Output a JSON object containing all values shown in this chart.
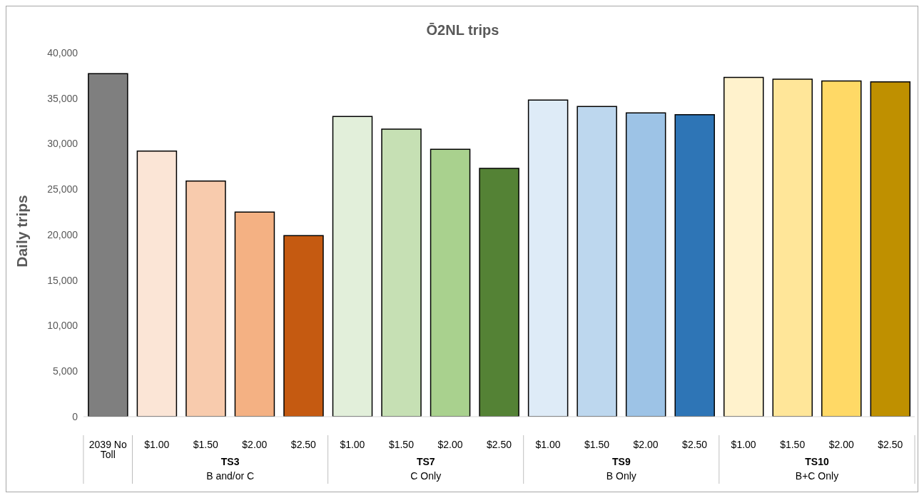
{
  "chart_data": {
    "type": "bar",
    "title": "Ō2NL trips",
    "ylabel": "Daily trips",
    "categories": [
      "2039 No Toll",
      "$1.00",
      "$1.50",
      "$2.00",
      "$2.50",
      "$1.00",
      "$1.50",
      "$2.00",
      "$2.50",
      "$1.00",
      "$1.50",
      "$2.00",
      "$2.50",
      "$1.00",
      "$1.50",
      "$2.00",
      "$2.50"
    ],
    "values": [
      37700,
      29200,
      25900,
      22500,
      19900,
      33000,
      31600,
      29400,
      27300,
      34800,
      34100,
      33400,
      33200,
      37300,
      37100,
      36900,
      36800
    ],
    "colors": [
      "#7f7f7f",
      "#fbe5d6",
      "#f8cbad",
      "#f4b183",
      "#c55a11",
      "#e2efda",
      "#c6e0b4",
      "#a9d18e",
      "#548235",
      "#deebf7",
      "#bdd7ee",
      "#9dc3e6",
      "#2e75b6",
      "#fff2cc",
      "#ffe699",
      "#ffd966",
      "#bf9000"
    ],
    "annotations": [
      "TS3",
      "B and/or C",
      "TS7",
      "C Only",
      "TS9",
      "B Only",
      "TS10",
      "B+C Only"
    ],
    "ylim": [
      0,
      40000
    ],
    "yticks": [
      0,
      {
        "value": 5000,
        "label": "5,000"
      },
      {
        "value": 10000,
        "label": "10,000"
      },
      {
        "value": 15000,
        "label": "15,000"
      },
      {
        "value": 20000,
        "label": "20,000"
      },
      {
        "value": 25000,
        "label": "25,000"
      },
      {
        "value": 30000,
        "label": "30,000"
      },
      {
        "value": 35000,
        "label": "35,000"
      },
      {
        "value": 40000,
        "label": "40,000"
      }
    ],
    "grid": false
  }
}
